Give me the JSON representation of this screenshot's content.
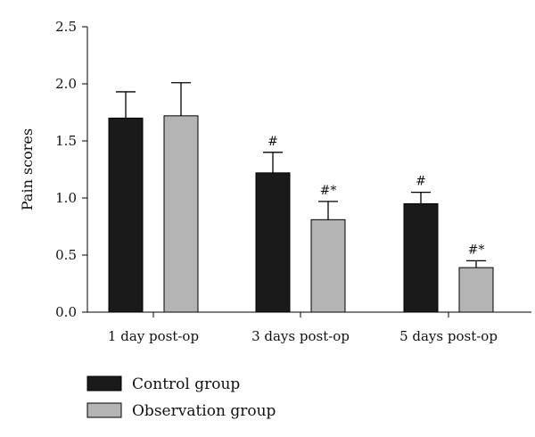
{
  "chart_data": {
    "type": "bar",
    "title": "",
    "xlabel": "",
    "ylabel": "Pain scores",
    "ylim": [
      0,
      2.5
    ],
    "yticks": [
      "0.0",
      "0.5",
      "1.0",
      "1.5",
      "2.0",
      "2.5"
    ],
    "categories": [
      "1 day post-op",
      "3 days post-op",
      "5 days post-op"
    ],
    "series": [
      {
        "name": "Control group",
        "color": "#1a1a1a",
        "values": [
          1.7,
          1.22,
          0.95
        ],
        "errors": [
          0.23,
          0.18,
          0.1
        ],
        "annotations": [
          "",
          "#",
          "#"
        ]
      },
      {
        "name": "Observation group",
        "color": "#b4b4b4",
        "values": [
          1.72,
          0.81,
          0.39
        ],
        "errors": [
          0.29,
          0.16,
          0.06
        ],
        "annotations": [
          "",
          "#*",
          "#*"
        ]
      }
    ],
    "legend": "bottom-left",
    "grid": false
  }
}
